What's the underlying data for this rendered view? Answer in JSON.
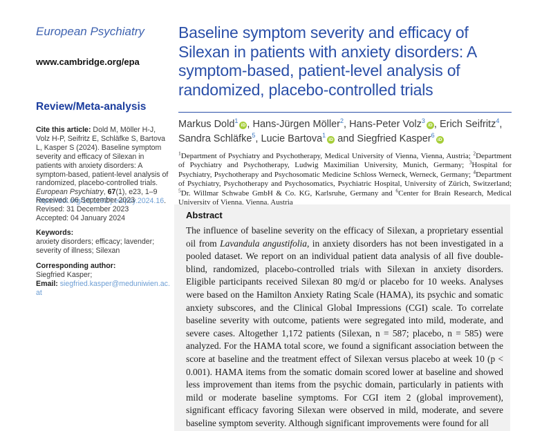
{
  "colors": {
    "title_blue": "#2a4fa8",
    "section_blue": "#1c3e9e",
    "link_blue": "#6d9ed4",
    "orcid_green": "#a6ce39",
    "abstract_bg": "#f1f1f1"
  },
  "journal": {
    "name": "European Psychiatry",
    "url": "www.cambridge.org/epa",
    "section": "Review/Meta-analysis"
  },
  "citation": {
    "label": "Cite this article:",
    "text": " Dold M, Möller H-J, Volz H-P, Seifritz E, Schläfke S, Bartova L, Kasper S (2024). Baseline symptom severity and efficacy of Silexan in patients with anxiety disorders: A symptom-based, patient-level analysis of randomized, placebo-controlled trials. ",
    "ref_journal": "European Psychiatry",
    "ref_sep": ", ",
    "ref_volume": "67",
    "ref_rest": "(1), e23, 1–9",
    "doi": "https://doi.org/10.1192/j.eurpsy.2024.16",
    "doi_suffix": "."
  },
  "dates": {
    "received": "Received: 06 September 2023",
    "revised": "Revised: 31 December 2023",
    "accepted": "Accepted: 04 January 2024"
  },
  "keywords": {
    "label": "Keywords:",
    "text": "anxiety disorders; efficacy; lavender; severity of illness; Silexan"
  },
  "corresponding": {
    "label": "Corresponding author:",
    "name": "Siegfried Kasper;",
    "email_label": "Email: ",
    "email": "siegfried.kasper@meduniwien.ac.at"
  },
  "article": {
    "title": "Baseline symptom severity and efficacy of Silexan in patients with anxiety disorders: A symptom-based, patient-level analysis of randomized, placebo-controlled trials",
    "orcid_icon_text": "iD",
    "authors": [
      {
        "name": "Markus Dold",
        "sup": "1",
        "orcid": true,
        "sep": ", "
      },
      {
        "name": "Hans-Jürgen Möller",
        "sup": "2",
        "orcid": false,
        "sep": ", "
      },
      {
        "name": "Hans-Peter Volz",
        "sup": "3",
        "orcid": true,
        "sep": ", "
      },
      {
        "name": "Erich Seifritz",
        "sup": "4",
        "orcid": false,
        "sep": ", "
      },
      {
        "name": "Sandra Schläfke",
        "sup": "5",
        "orcid": false,
        "sep": ", "
      },
      {
        "name": "Lucie Bartova",
        "sup": "1",
        "orcid": true,
        "sep": " and "
      },
      {
        "name": "Siegfried Kasper",
        "sup": "6",
        "orcid": true,
        "sep": ""
      }
    ],
    "affiliations": [
      {
        "sup": "1",
        "text": "Department of Psychiatry and Psychotherapy, Medical University of Vienna, Vienna, Austria; "
      },
      {
        "sup": "2",
        "text": "Department of Psychiatry and Psychotherapy, Ludwig Maximilian University, Munich, Germany; "
      },
      {
        "sup": "3",
        "text": "Hospital for Psychiatry, Psychotherapy and Psychosomatic Medicine Schloss Werneck, Werneck, Germany; "
      },
      {
        "sup": "4",
        "text": "Department of Psychiatry, Psychotherapy and Psychosomatics, Psychiatric Hospital, University of Zürich, Switzerland; "
      },
      {
        "sup": "5",
        "text": "Dr. Willmar Schwabe GmbH & Co. KG, Karlsruhe, Germany and "
      },
      {
        "sup": "6",
        "text": "Center for Brain Research, Medical University of Vienna, Vienna, Austria"
      }
    ]
  },
  "abstract": {
    "heading": "Abstract",
    "p_before_italic": "The influence of baseline severity on the efficacy of Silexan, a proprietary essential oil from ",
    "italic_species": "Lavandula angustifolia",
    "p_after_italic": ", in anxiety disorders has not been investigated in a pooled dataset. We report on an individual patient data analysis of all five double-blind, randomized, placebo-controlled trials with Silexan in anxiety disorders. Eligible participants received Silexan 80 mg/d or placebo for 10 weeks. Analyses were based on the Hamilton Anxiety Rating Scale (HAMA), its psychic and somatic anxiety subscores, and the Clinical Global Impressions (CGI) scale. To correlate baseline severity with outcome, patients were segregated into mild, moderate, and severe cases. Altogether 1,172 patients (Silexan, n = 587; placebo, n = 585) were analyzed. For the HAMA total score, we found a significant association between the score at baseline and the treatment effect of Silexan versus placebo at week 10 (p < 0.001). HAMA items from the somatic domain scored lower at baseline and showed less improvement than items from the psychic domain, particularly in patients with mild or moderate baseline symptoms. For CGI item 2 (global improvement), significant efficacy favoring Silexan were observed in mild, moderate, and severe baseline symptom severity. Although significant improvements were found for all"
  }
}
